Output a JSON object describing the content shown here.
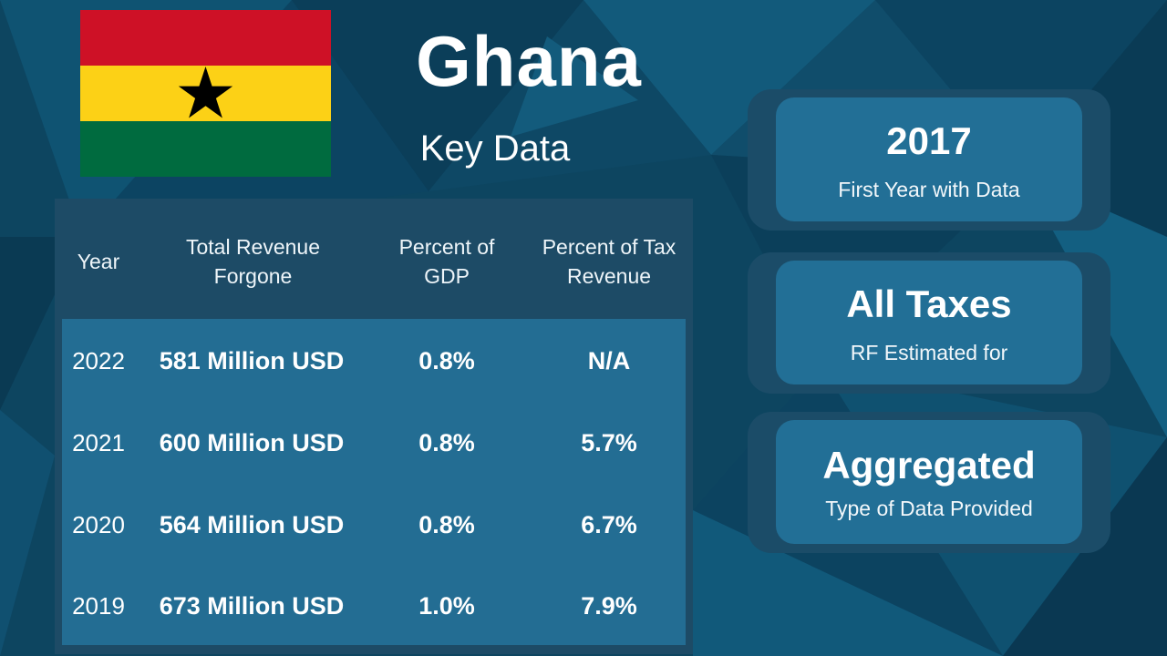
{
  "slide": {
    "title": "Ghana",
    "subtitle": "Key Data"
  },
  "flag": {
    "colors": {
      "red": "#ce1126",
      "yellow": "#fcd116",
      "green": "#006b3f",
      "star": "#000000"
    }
  },
  "table": {
    "headers": [
      "Year",
      "Total Revenue Forgone",
      "Percent of GDP",
      "Percent of Tax Revenue"
    ],
    "rows": [
      {
        "year": "2022",
        "revenue": "581 Million USD",
        "gdp": "0.8%",
        "tax": "N/A"
      },
      {
        "year": "2021",
        "revenue": "600 Million USD",
        "gdp": "0.8%",
        "tax": "5.7%"
      },
      {
        "year": "2020",
        "revenue": "564 Million USD",
        "gdp": "0.8%",
        "tax": "6.7%"
      },
      {
        "year": "2019",
        "revenue": "673 Million USD",
        "gdp": "1.0%",
        "tax": "7.9%"
      }
    ]
  },
  "cards": [
    {
      "value": "2017",
      "label": "First Year with Data"
    },
    {
      "value": "All Taxes",
      "label": "RF Estimated for"
    },
    {
      "value": "Aggregated",
      "label": "Type of Data Provided"
    }
  ],
  "theme": {
    "background": "#0e4a66",
    "panel": "#1d4b66",
    "panel_accent": "#236d93"
  }
}
